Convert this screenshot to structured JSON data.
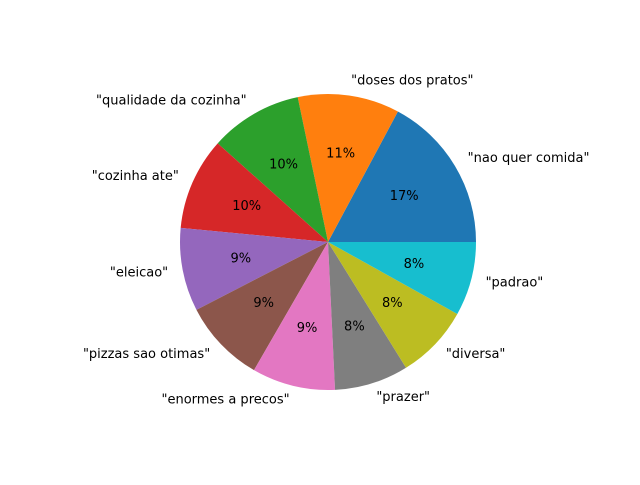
{
  "chart_data": {
    "type": "pie",
    "title": "",
    "start_angle_deg": 0,
    "direction": "counterclockwise",
    "slices": [
      {
        "label": "\"nao quer comida\"",
        "value": 17,
        "pct_label": "17%",
        "color": "#1f77b4"
      },
      {
        "label": "\"doses dos pratos\"",
        "value": 11,
        "pct_label": "11%",
        "color": "#ff7f0e"
      },
      {
        "label": "\"qualidade da cozinha\"",
        "value": 10,
        "pct_label": "10%",
        "color": "#2ca02c"
      },
      {
        "label": "\"cozinha ate\"",
        "value": 10,
        "pct_label": "10%",
        "color": "#d62728"
      },
      {
        "label": "\"eleicao\"",
        "value": 9,
        "pct_label": "9%",
        "color": "#9467bd"
      },
      {
        "label": "\"pizzas sao otimas\"",
        "value": 9,
        "pct_label": "9%",
        "color": "#8c564b"
      },
      {
        "label": "\"enormes a precos\"",
        "value": 9,
        "pct_label": "9%",
        "color": "#e377c2"
      },
      {
        "label": "\"prazer\"",
        "value": 8,
        "pct_label": "8%",
        "color": "#7f7f7f"
      },
      {
        "label": "\"diversa\"",
        "value": 8,
        "pct_label": "8%",
        "color": "#bcbd22"
      },
      {
        "label": "\"padrao\"",
        "value": 8,
        "pct_label": "8%",
        "color": "#17becf"
      }
    ]
  }
}
